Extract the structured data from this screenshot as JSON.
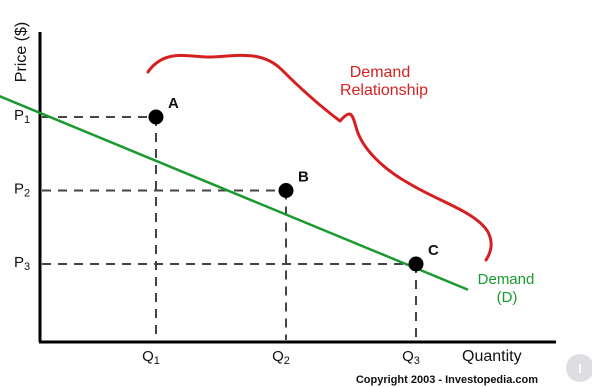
{
  "chart_data": {
    "type": "line",
    "ylabel": "Price ($)",
    "xlabel": "Quantity",
    "x_ticks": [
      {
        "main": "Q",
        "sub": "1"
      },
      {
        "main": "Q",
        "sub": "2"
      },
      {
        "main": "Q",
        "sub": "3"
      }
    ],
    "y_ticks": [
      {
        "main": "P",
        "sub": "1"
      },
      {
        "main": "P",
        "sub": "2"
      },
      {
        "main": "P",
        "sub": "3"
      }
    ],
    "xlim": [
      0,
      4.5
    ],
    "ylim": [
      0,
      4.5
    ],
    "grid": false,
    "curve": {
      "label_line1": "Demand",
      "label_line2": "(D)",
      "color": "#1a9a2e",
      "start": [
        -0.5,
        3.5
      ],
      "end": [
        3.4,
        0.65
      ]
    },
    "points": [
      {
        "label": "A",
        "x": 1,
        "y": 3
      },
      {
        "label": "B",
        "x": 2,
        "y": 2
      },
      {
        "label": "C",
        "x": 3,
        "y": 1
      }
    ],
    "annotation": {
      "line1": "Demand",
      "line2": "Relationship",
      "color": "#d42020"
    }
  },
  "copyright": "Copyright 2003 - Investopedia.com",
  "logo": {
    "letter": "I",
    "icon": "investopedia-logo-icon",
    "color": "#d9d9de"
  }
}
